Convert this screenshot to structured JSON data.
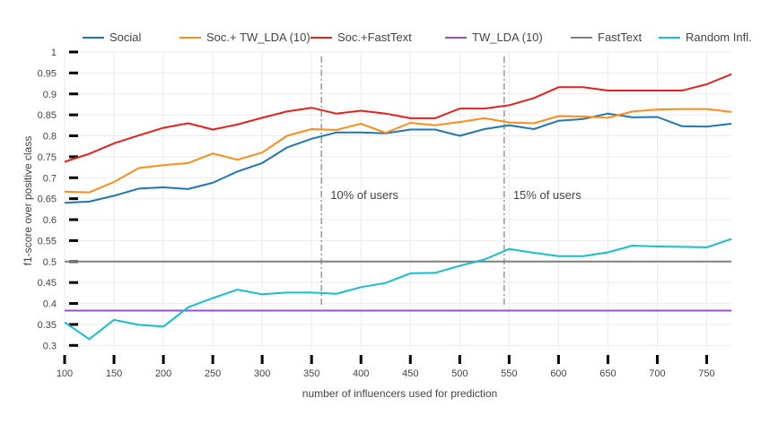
{
  "chart_data": {
    "type": "line",
    "xlabel": "number of influencers used for prediction",
    "ylabel": "f1-score over positive class",
    "xlim": [
      100,
      775
    ],
    "ylim": [
      0.29,
      1.0
    ],
    "x_ticks": [
      "100",
      "150",
      "200",
      "250",
      "300",
      "350",
      "400",
      "450",
      "500",
      "550",
      "600",
      "650",
      "700",
      "750"
    ],
    "y_ticks": [
      "0.3",
      "0.35",
      "0.4",
      "0.45",
      "0.5",
      "0.55",
      "0.6",
      "0.65",
      "0.7",
      "0.75",
      "0.8",
      "0.85",
      "0.9",
      "0.95",
      "1"
    ],
    "x": [
      100,
      125,
      150,
      175,
      200,
      225,
      250,
      275,
      300,
      325,
      350,
      375,
      400,
      425,
      450,
      475,
      500,
      525,
      550,
      575,
      600,
      625,
      650,
      675,
      700,
      725,
      750,
      775
    ],
    "series": [
      {
        "name": "Social",
        "color": "#1f77b4",
        "values": [
          0.64,
          0.643,
          0.657,
          0.674,
          0.677,
          0.673,
          0.688,
          0.715,
          0.735,
          0.772,
          0.793,
          0.808,
          0.808,
          0.806,
          0.815,
          0.815,
          0.8,
          0.816,
          0.825,
          0.816,
          0.836,
          0.84,
          0.853,
          0.844,
          0.845,
          0.823,
          0.822,
          0.829
        ]
      },
      {
        "name": "Soc.+ TW_LDA (10)",
        "color": "#ff8c1a",
        "values": [
          0.667,
          0.665,
          0.69,
          0.723,
          0.73,
          0.735,
          0.758,
          0.743,
          0.76,
          0.8,
          0.816,
          0.814,
          0.829,
          0.807,
          0.831,
          0.825,
          0.833,
          0.842,
          0.832,
          0.83,
          0.847,
          0.846,
          0.843,
          0.858,
          0.863,
          0.864,
          0.864,
          0.857
        ]
      },
      {
        "name": "Soc.+FastText",
        "color": "#e8201c",
        "values": [
          0.738,
          0.757,
          0.782,
          0.801,
          0.819,
          0.83,
          0.815,
          0.827,
          0.843,
          0.858,
          0.867,
          0.853,
          0.86,
          0.853,
          0.842,
          0.842,
          0.865,
          0.865,
          0.873,
          0.89,
          0.916,
          0.916,
          0.908,
          0.908,
          0.908,
          0.908,
          0.923,
          0.947
        ]
      },
      {
        "name": "TW_LDA (10)",
        "color": "#9b4fd0",
        "values": [
          0.383,
          0.383,
          0.383,
          0.383,
          0.383,
          0.383,
          0.383,
          0.383,
          0.383,
          0.383,
          0.383,
          0.383,
          0.383,
          0.383,
          0.383,
          0.383,
          0.383,
          0.383,
          0.383,
          0.383,
          0.383,
          0.383,
          0.383,
          0.383,
          0.383,
          0.383,
          0.383,
          0.383
        ]
      },
      {
        "name": "FastText",
        "color": "#7f7f7f",
        "values": [
          0.5,
          0.5,
          0.5,
          0.5,
          0.5,
          0.5,
          0.5,
          0.5,
          0.5,
          0.5,
          0.5,
          0.5,
          0.5,
          0.5,
          0.5,
          0.5,
          0.5,
          0.5,
          0.5,
          0.5,
          0.5,
          0.5,
          0.5,
          0.5,
          0.5,
          0.5,
          0.5,
          0.5
        ]
      },
      {
        "name": "Random Infl.",
        "color": "#17becf",
        "values": [
          0.355,
          0.315,
          0.361,
          0.349,
          0.345,
          0.391,
          0.413,
          0.433,
          0.422,
          0.426,
          0.426,
          0.423,
          0.439,
          0.449,
          0.472,
          0.473,
          0.49,
          0.505,
          0.53,
          0.521,
          0.513,
          0.513,
          0.522,
          0.538,
          0.536,
          0.535,
          0.534,
          0.554
        ]
      }
    ],
    "annotations": [
      {
        "x": 360,
        "text": "10% of users"
      },
      {
        "x": 545,
        "text": "15% of users"
      }
    ],
    "grid": true,
    "legend_position": "top"
  }
}
